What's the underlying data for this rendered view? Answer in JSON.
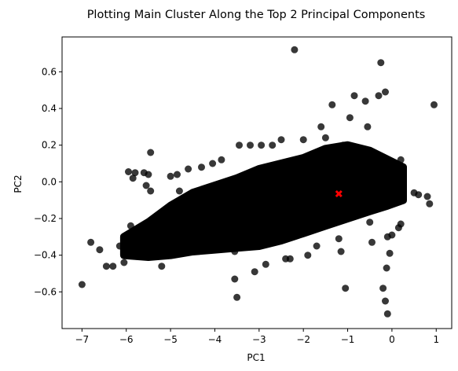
{
  "chart_data": {
    "type": "scatter",
    "title": "Plotting Main Cluster Along the Top 2 Principal Components",
    "xlabel": "PC1",
    "ylabel": "PC2",
    "xlim": [
      -7.45,
      1.35
    ],
    "ylim": [
      -0.8,
      0.79
    ],
    "xticks": [
      -7,
      -6,
      -5,
      -4,
      -3,
      -2,
      -1,
      0,
      1
    ],
    "yticks": [
      -0.6,
      -0.4,
      -0.2,
      0.0,
      0.2,
      0.4,
      0.6
    ],
    "xtick_labels": [
      "−7",
      "−6",
      "−5",
      "−4",
      "−3",
      "−2",
      "−1",
      "0",
      "1"
    ],
    "ytick_labels": [
      "−0.6",
      "−0.4",
      "−0.2",
      "0.0",
      "0.2",
      "0.4",
      "0.6"
    ],
    "grid": false,
    "point_color": "#000000",
    "point_opacity": 0.78,
    "centroid": {
      "x": -1.2,
      "y": -0.065,
      "color": "#ff0000",
      "marker": "x"
    },
    "series": [
      {
        "values": [
          [
            -7.0,
            -0.56
          ],
          [
            -6.8,
            -0.33
          ],
          [
            -6.6,
            -0.37
          ],
          [
            -6.45,
            -0.46
          ],
          [
            -6.3,
            -0.46
          ],
          [
            -6.15,
            -0.35
          ],
          [
            -6.05,
            -0.44
          ],
          [
            -5.95,
            -0.3
          ],
          [
            -5.9,
            -0.24
          ],
          [
            -5.95,
            0.055
          ],
          [
            -5.8,
            0.05
          ],
          [
            -5.85,
            0.02
          ],
          [
            -5.6,
            0.05
          ],
          [
            -5.55,
            -0.02
          ],
          [
            -5.5,
            0.04
          ],
          [
            -5.45,
            0.16
          ],
          [
            -5.45,
            -0.05
          ],
          [
            -5.3,
            -0.3
          ],
          [
            -5.2,
            -0.46
          ],
          [
            -5.1,
            -0.38
          ],
          [
            -5.0,
            0.03
          ],
          [
            -4.85,
            0.04
          ],
          [
            -4.8,
            -0.05
          ],
          [
            -4.6,
            0.07
          ],
          [
            -4.45,
            -0.1
          ],
          [
            -4.3,
            0.08
          ],
          [
            -4.05,
            0.1
          ],
          [
            -3.9,
            -0.35
          ],
          [
            -3.85,
            0.12
          ],
          [
            -3.55,
            -0.38
          ],
          [
            -3.55,
            -0.53
          ],
          [
            -3.5,
            -0.63
          ],
          [
            -3.45,
            0.2
          ],
          [
            -3.2,
            0.2
          ],
          [
            -3.1,
            -0.49
          ],
          [
            -2.95,
            0.2
          ],
          [
            -2.85,
            -0.45
          ],
          [
            -2.7,
            0.2
          ],
          [
            -2.5,
            0.23
          ],
          [
            -2.4,
            -0.42
          ],
          [
            -2.3,
            -0.42
          ],
          [
            -2.2,
            0.72
          ],
          [
            -2.0,
            0.23
          ],
          [
            -1.9,
            -0.4
          ],
          [
            -1.7,
            -0.35
          ],
          [
            -1.6,
            0.3
          ],
          [
            -1.5,
            0.24
          ],
          [
            -1.35,
            0.42
          ],
          [
            -1.2,
            -0.31
          ],
          [
            -1.15,
            -0.38
          ],
          [
            -1.1,
            0.2
          ],
          [
            -1.05,
            -0.58
          ],
          [
            -0.95,
            0.35
          ],
          [
            -0.85,
            0.47
          ],
          [
            -0.6,
            0.44
          ],
          [
            -0.55,
            0.3
          ],
          [
            -0.5,
            -0.22
          ],
          [
            -0.45,
            -0.33
          ],
          [
            -0.3,
            0.47
          ],
          [
            -0.25,
            0.65
          ],
          [
            -0.15,
            0.49
          ],
          [
            -0.2,
            -0.58
          ],
          [
            -0.15,
            -0.65
          ],
          [
            -0.12,
            -0.47
          ],
          [
            -0.1,
            -0.72
          ],
          [
            -0.05,
            -0.39
          ],
          [
            -0.1,
            -0.3
          ],
          [
            0.0,
            -0.29
          ],
          [
            0.15,
            -0.25
          ],
          [
            0.2,
            -0.23
          ],
          [
            0.2,
            0.12
          ],
          [
            0.5,
            -0.06
          ],
          [
            0.6,
            -0.07
          ],
          [
            0.8,
            -0.08
          ],
          [
            0.85,
            -0.12
          ],
          [
            0.95,
            0.42
          ]
        ]
      }
    ]
  }
}
